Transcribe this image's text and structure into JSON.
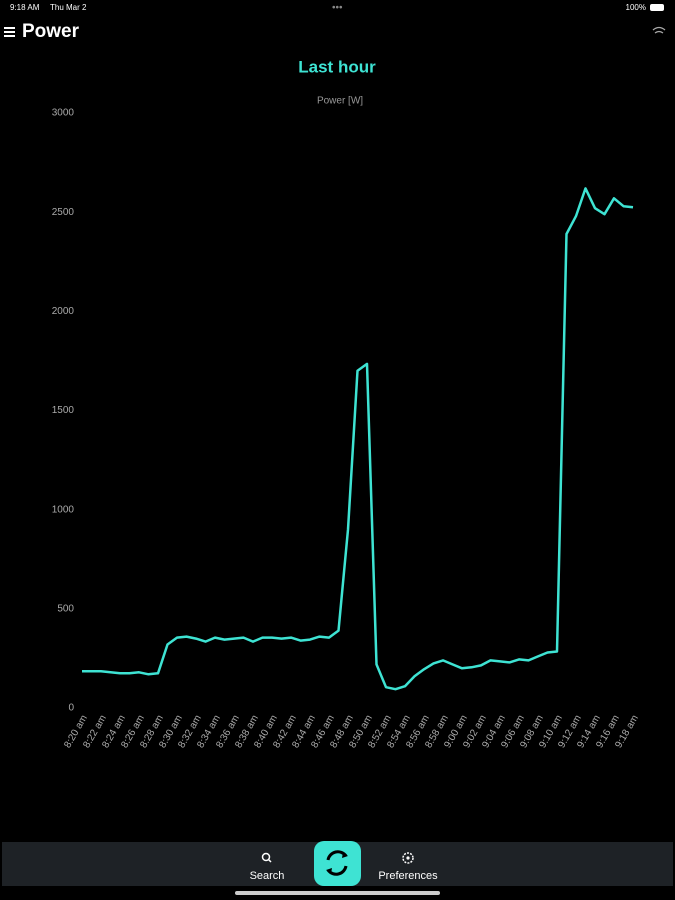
{
  "status_bar": {
    "time": "9:18 AM",
    "date": "Thu Mar 2",
    "battery": "100%"
  },
  "header": {
    "title": "Power"
  },
  "chart_data": {
    "type": "line",
    "title": "Last hour",
    "y_label": "Power [W]",
    "categories": [
      "8:20 am",
      null,
      "8:22 am",
      null,
      "8:24 am",
      null,
      "8:26 am",
      null,
      "8:28 am",
      null,
      "8:30 am",
      null,
      "8:32 am",
      null,
      "8:34 am",
      null,
      "8:36 am",
      null,
      "8:38 am",
      null,
      "8:40 am",
      null,
      "8:42 am",
      null,
      "8:44 am",
      null,
      "8:46 am",
      null,
      "8:48 am",
      null,
      "8:50 am",
      null,
      "8:52 am",
      null,
      "8:54 am",
      null,
      "8:56 am",
      null,
      "8:58 am",
      null,
      "9:00 am",
      null,
      "9:02 am",
      null,
      "9:04 am",
      null,
      "9:06 am",
      null,
      "9:08 am",
      null,
      "9:10 am",
      null,
      "9:12 am",
      null,
      "9:14 am",
      null,
      "9:16 am",
      null,
      "9:18 am"
    ],
    "series": [
      {
        "name": "Power",
        "color": "#3ee3d3",
        "values": [
          185,
          185,
          185,
          180,
          175,
          175,
          180,
          170,
          175,
          320,
          355,
          360,
          350,
          335,
          355,
          345,
          350,
          355,
          335,
          355,
          355,
          350,
          355,
          340,
          345,
          360,
          355,
          390,
          900,
          1700,
          1735,
          220,
          105,
          95,
          110,
          160,
          195,
          225,
          240,
          220,
          200,
          205,
          215,
          240,
          235,
          230,
          245,
          240,
          260,
          280,
          285,
          2390,
          2480,
          2620,
          2520,
          2490,
          2570,
          2530,
          2525
        ]
      }
    ],
    "ylim": [
      0,
      3000
    ],
    "yticks": [
      0,
      500,
      1000,
      1500,
      2000,
      2500,
      3000
    ]
  },
  "nav": {
    "search": "Search",
    "preferences": "Preferences"
  }
}
